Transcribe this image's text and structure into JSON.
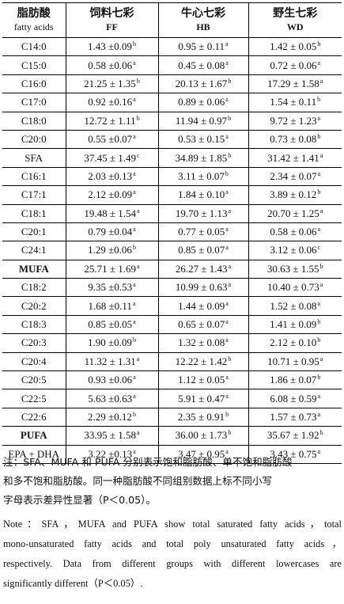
{
  "header": {
    "col0_cn": "脂肪酸",
    "col0_en": "fatty acids",
    "col1_cn": "饲料七彩",
    "col1_en": "FF",
    "col2_cn": "牛心七彩",
    "col2_en": "HB",
    "col3_cn": "野生七彩",
    "col3_en": "WD"
  },
  "rows": [
    {
      "name": "C14:0",
      "bold": false,
      "ff": "1.43 ±0.09",
      "ff_sup": "b",
      "hb": "0.95 ± 0.11",
      "hb_sup": "a",
      "wd": "1.42 ± 0.05",
      "wd_sup": "b"
    },
    {
      "name": "C15:0",
      "bold": false,
      "ff": "0.58 ±0.06",
      "ff_sup": "a",
      "hb": "0.45 ± 0.08",
      "hb_sup": "a",
      "wd": "0.72 ± 0.06",
      "wd_sup": "a"
    },
    {
      "name": "C16:0",
      "bold": false,
      "ff": "21.25 ± 1.35",
      "ff_sup": "b",
      "hb": "20.13 ± 1.67",
      "hb_sup": "b",
      "wd": "17.29 ± 1.58",
      "wd_sup": "a"
    },
    {
      "name": "C17:0",
      "bold": false,
      "ff": "0.92 ±0.16",
      "ff_sup": "a",
      "hb": "0.89 ± 0.06",
      "hb_sup": "a",
      "wd": "1.54 ± 0.11",
      "wd_sup": "b"
    },
    {
      "name": "C18:0",
      "bold": false,
      "ff": "12.72 ± 1.11",
      "ff_sup": "b",
      "hb": "11.94 ± 0.97",
      "hb_sup": "b",
      "wd": "9.72 ± 1.23",
      "wd_sup": "a"
    },
    {
      "name": "C20:0",
      "bold": false,
      "ff": "0.55 ±0.07",
      "ff_sup": "a",
      "hb": "0.53 ± 0.15",
      "hb_sup": "a",
      "wd": "0.73 ± 0.08",
      "wd_sup": "b"
    },
    {
      "name": "SFA",
      "bold": false,
      "ff": "37.45 ± 1.49",
      "ff_sup": "c",
      "hb": "34.89 ± 1.85",
      "hb_sup": "b",
      "wd": "31.42 ± 1.41",
      "wd_sup": "a"
    },
    {
      "name": "C16:1",
      "bold": false,
      "ff": "2.03 ±0.13",
      "ff_sup": "a",
      "hb": "3.11 ± 0.07",
      "hb_sup": "b",
      "wd": "2.34 ± 0.07",
      "wd_sup": "a"
    },
    {
      "name": "C17:1",
      "bold": false,
      "ff": "2.12 ±0.09",
      "ff_sup": "a",
      "hb": "1.84 ± 0.10",
      "hb_sup": "a",
      "wd": "3.89 ± 0.12",
      "wd_sup": "b"
    },
    {
      "name": "C18:1",
      "bold": false,
      "ff": "19.48 ± 1.54",
      "ff_sup": "a",
      "hb": "19.70 ± 1.13",
      "hb_sup": "a",
      "wd": "20.70 ± 1.25",
      "wd_sup": "a"
    },
    {
      "name": "C20:1",
      "bold": false,
      "ff": "0.79 ±0.04",
      "ff_sup": "a",
      "hb": "0.77 ± 0.05",
      "hb_sup": "a",
      "wd": "0.58 ± 0.06",
      "wd_sup": "a"
    },
    {
      "name": "C24:1",
      "bold": false,
      "ff": "1.29 ±0.06",
      "ff_sup": "b",
      "hb": "0.85 ± 0.07",
      "hb_sup": "a",
      "wd": "3.12 ± 0.06",
      "wd_sup": "c"
    },
    {
      "name": "MUFA",
      "bold": true,
      "ff": "25.71 ± 1.69",
      "ff_sup": "a",
      "hb": "26.27 ± 1.43",
      "hb_sup": "a",
      "wd": "30.63 ± 1.55",
      "wd_sup": "b"
    },
    {
      "name": "C18:2",
      "bold": false,
      "ff": "9.35 ±0.53",
      "ff_sup": "a",
      "hb": "10.99 ± 0.63",
      "hb_sup": "a",
      "wd": "10.40 ± 0.73",
      "wd_sup": "a"
    },
    {
      "name": "C20:2",
      "bold": false,
      "ff": "1.68 ±0.11",
      "ff_sup": "a",
      "hb": "1.44 ± 0.09",
      "hb_sup": "a",
      "wd": "1.52 ± 0.08",
      "wd_sup": "a"
    },
    {
      "name": "C18:3",
      "bold": false,
      "ff": "0.85 ±0.05",
      "ff_sup": "a",
      "hb": "0.65 ± 0.07",
      "hb_sup": "a",
      "wd": "1.41 ± 0.09",
      "wd_sup": "b"
    },
    {
      "name": "C20:3",
      "bold": false,
      "ff": "1.90 ±0.09",
      "ff_sup": "b",
      "hb": "1.32 ± 0.08",
      "hb_sup": "a",
      "wd": "2.12 ± 0.10",
      "wd_sup": "b"
    },
    {
      "name": "C20:4",
      "bold": false,
      "ff": "11.32 ± 1.31",
      "ff_sup": "a",
      "hb": "12.22 ± 1.42",
      "hb_sup": "b",
      "wd": "10.71 ± 0.95",
      "wd_sup": "a"
    },
    {
      "name": "C20:5",
      "bold": false,
      "ff": "0.93 ±0.06",
      "ff_sup": "a",
      "hb": "1.12 ± 0.05",
      "hb_sup": "a",
      "wd": "1.86 ± 0.07",
      "wd_sup": "b"
    },
    {
      "name": "C22:5",
      "bold": false,
      "ff": "5.63 ±0.63",
      "ff_sup": "a",
      "hb": "5.91 ± 0.47",
      "hb_sup": "a",
      "wd": "6.08 ± 0.59",
      "wd_sup": "a"
    },
    {
      "name": "C22:6",
      "bold": false,
      "ff": "2.29 ±0.12",
      "ff_sup": "b",
      "hb": "2.35 ± 0.91",
      "hb_sup": "b",
      "wd": "1.57 ± 0.73",
      "wd_sup": "a"
    },
    {
      "name": "PUFA",
      "bold": true,
      "ff": "33.95 ± 1.58",
      "ff_sup": "a",
      "hb": "36.00 ± 1.73",
      "hb_sup": "b",
      "wd": "35.67 ± 1.92",
      "wd_sup": "b"
    },
    {
      "name": "EPA + DHA",
      "bold": false,
      "ff": "3.22 ±0.13",
      "ff_sup": "a",
      "hb": "3.47 ± 0.95",
      "hb_sup": "a",
      "wd": "3.43 ± 0.75",
      "wd_sup": "a"
    }
  ],
  "note_cn": [
    "注：SFA、MUFA 和 PUFA 分别表示饱和脂肪酸、单不饱和脂肪酸",
    "和多不饱和脂肪酸。同一种脂肪酸不同组别数据上标不同小写",
    "字母表示差异性显著（P＜0.05）。"
  ],
  "note_en": [
    "Note：SFA，MUFA and PUFA show total saturated fatty acids，total",
    "mono-unsaturated fatty acids and total poly unsaturated fatty acids，",
    "respectively. Data from different groups with different lowercases are",
    "significantly different（P＜0.05）."
  ]
}
